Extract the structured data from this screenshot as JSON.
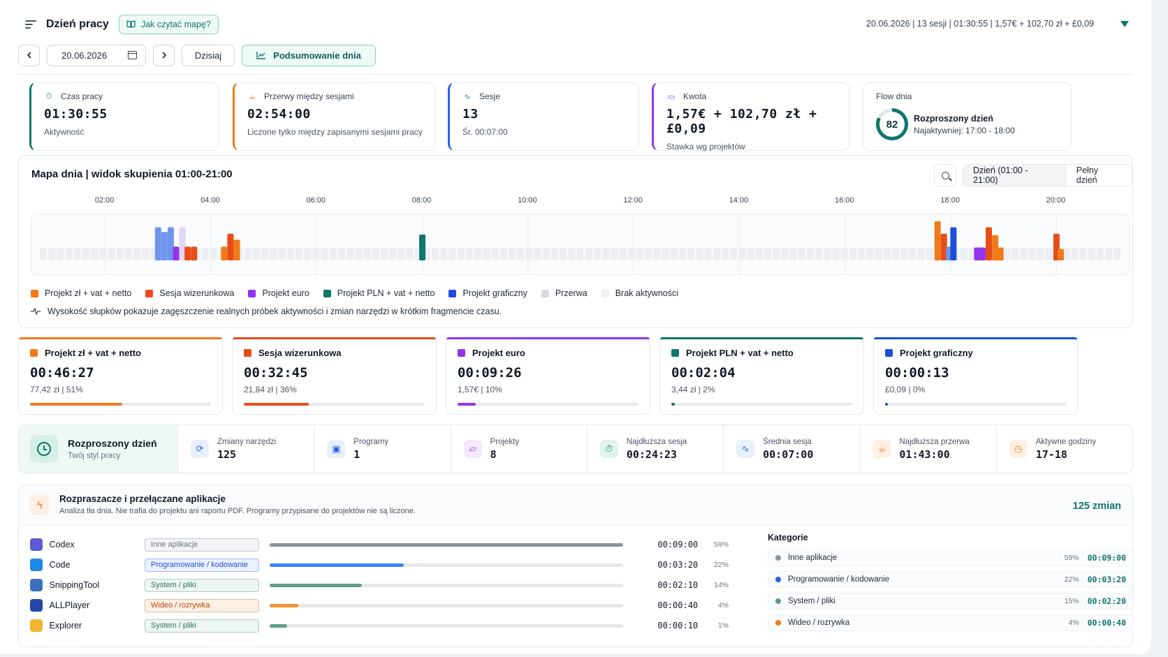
{
  "header": {
    "title": "Dzień pracy",
    "howto_label": "Jak czytać mapę?",
    "summary": "20.06.2026 | 13 sesji | 01:30:55 | 1,57€ + 102,70 zł + £0,09"
  },
  "datebar": {
    "date": "20.06.2026",
    "today_label": "Dzisiaj",
    "summary_label": "Podsumowanie dnia"
  },
  "stats": [
    {
      "label": "Czas pracy",
      "value": "01:30:55",
      "sub": "Aktywność",
      "color": "#0f766e",
      "icon": "timer-icon"
    },
    {
      "label": "Przerwy między sesjami",
      "value": "02:54:00",
      "sub": "Liczone tylko między zapisanymi sesjami pracy",
      "color": "#ea7a14",
      "icon": "coffee-icon"
    },
    {
      "label": "Sesje",
      "value": "13",
      "sub": "Śr. 00:07:00",
      "color": "#2563eb",
      "icon": "pulse-icon"
    },
    {
      "label": "Kwota",
      "value": "1,57€ + 102,70 zł + £0,09",
      "sub": "Stawka wg projektów",
      "color": "#9333ea",
      "icon": "wallet-icon"
    }
  ],
  "flow": {
    "label": "Flow dnia",
    "score": "82",
    "score_value": 82,
    "title": "Rozproszony dzień",
    "sub": "Najaktywniej: 17:00 - 18:00"
  },
  "map": {
    "title": "Mapa dnia | widok skupienia 01:00-21:00",
    "mode_day": "Dzień (01:00 - 21:00)",
    "mode_full": "Pełny dzień",
    "ticks": [
      "02:00",
      "04:00",
      "06:00",
      "08:00",
      "10:00",
      "12:00",
      "14:00",
      "16:00",
      "18:00",
      "20:00"
    ],
    "legend": [
      {
        "label": "Projekt zł + vat + netto",
        "color": "#f07a1a"
      },
      {
        "label": "Sesja wizerunkowa",
        "color": "#e84d18"
      },
      {
        "label": "Projekt euro",
        "color": "#9333ea"
      },
      {
        "label": "Projekt PLN + vat + netto",
        "color": "#0f766e"
      },
      {
        "label": "Projekt graficzny",
        "color": "#1d4ed8"
      },
      {
        "label": "Przerwa",
        "color": "#d7dce3"
      },
      {
        "label": "Brak aktywności",
        "color": "#eceff3"
      }
    ],
    "note": "Wysokość słupków pokazuje zagęszczenie realnych próbek aktywności i zmian narzędzi w krótkim fragmencie czasu."
  },
  "projects": [
    {
      "name": "Projekt zł + vat + netto",
      "time": "00:46:27",
      "sub": "77,42 zł | 51%",
      "pct": 51,
      "color": "#f07a1a"
    },
    {
      "name": "Sesja wizerunkowa",
      "time": "00:32:45",
      "sub": "21,84 zł | 36%",
      "pct": 36,
      "color": "#e84d18"
    },
    {
      "name": "Projekt euro",
      "time": "00:09:26",
      "sub": "1,57€ | 10%",
      "pct": 10,
      "color": "#9333ea"
    },
    {
      "name": "Projekt PLN + vat + netto",
      "time": "00:02:04",
      "sub": "3,44 zł | 2%",
      "pct": 2,
      "color": "#0f766e"
    },
    {
      "name": "Projekt graficzny",
      "time": "00:00:13",
      "sub": "£0,09 | 0%",
      "pct": 0.5,
      "color": "#1d4ed8"
    }
  ],
  "metrics": {
    "style_title": "Rozproszony dzień",
    "style_sub": "Twój styl pracy",
    "items": [
      {
        "label": "Zmiany narzędzi",
        "value": "125",
        "icon": "refresh-icon",
        "color": "#2563eb",
        "bg": "#e8effd"
      },
      {
        "label": "Programy",
        "value": "1",
        "icon": "window-icon",
        "color": "#2563eb",
        "bg": "#e8effd"
      },
      {
        "label": "Projekty",
        "value": "8",
        "icon": "folder-icon",
        "color": "#9333ea",
        "bg": "#f3e8fd"
      },
      {
        "label": "Najdłuższa sesja",
        "value": "00:24:23",
        "icon": "timer-icon",
        "color": "#0f766e",
        "bg": "#e0f3ee"
      },
      {
        "label": "Średnia sesja",
        "value": "00:07:00",
        "icon": "pulse-icon",
        "color": "#2563eb",
        "bg": "#e8effd"
      },
      {
        "label": "Najdłuższa przerwa",
        "value": "01:43:00",
        "icon": "coffee-icon",
        "color": "#ea7a14",
        "bg": "#fdf0e3"
      },
      {
        "label": "Aktywne godziny",
        "value": "17-18",
        "icon": "clock-icon",
        "color": "#ea7a14",
        "bg": "#fdf0e3"
      }
    ]
  },
  "apps": {
    "title": "Rozpraszacze i przełączane aplikacje",
    "sub": "Analiza tła dnia. Nie trafia do projektu ani raportu PDF. Programy przypisane do projektów nie są liczone.",
    "count": "125 zmian",
    "rows": [
      {
        "name": "Codex",
        "tag": "Inne aplikacje",
        "time": "00:09:00",
        "pct": "59%",
        "frac": 1.0,
        "bar": "#8a93a0",
        "tagc": "#6b7280",
        "tagb": "#f3f4f6",
        "icon": "#5b5bd6"
      },
      {
        "name": "Code",
        "tag": "Programowanie / kodowanie",
        "time": "00:03:20",
        "pct": "22%",
        "frac": 0.38,
        "bar": "#3b82f6",
        "tagc": "#1d4ed8",
        "tagb": "#eaf1fe",
        "icon": "#1e88e5"
      },
      {
        "name": "SnippingTool",
        "tag": "System / pliki",
        "time": "00:02:10",
        "pct": "14%",
        "frac": 0.26,
        "bar": "#5f9e89",
        "tagc": "#2f6f5c",
        "tagb": "#edf6f2",
        "icon": "#3d6fb8"
      },
      {
        "name": "ALLPlayer",
        "tag": "Wideo / rozrywka",
        "time": "00:00:40",
        "pct": "4%",
        "frac": 0.08,
        "bar": "#f39232",
        "tagc": "#c2410c",
        "tagb": "#fef1e4",
        "icon": "#2446a8"
      },
      {
        "name": "Explorer",
        "tag": "System / pliki",
        "time": "00:00:10",
        "pct": "1%",
        "frac": 0.05,
        "bar": "#5f9e89",
        "tagc": "#2f6f5c",
        "tagb": "#edf6f2",
        "icon": "#f2b632"
      }
    ],
    "categories_title": "Kategorie",
    "categories": [
      {
        "name": "Inne aplikacje",
        "pct": "59%",
        "time": "00:09:00",
        "color": "#8a93a0"
      },
      {
        "name": "Programowanie / kodowanie",
        "pct": "22%",
        "time": "00:03:20",
        "color": "#2563eb"
      },
      {
        "name": "System / pliki",
        "pct": "15%",
        "time": "00:02:20",
        "color": "#5f9e89"
      },
      {
        "name": "Wideo / rozrywka",
        "pct": "4%",
        "time": "00:00:40",
        "color": "#f07a1a"
      }
    ]
  }
}
